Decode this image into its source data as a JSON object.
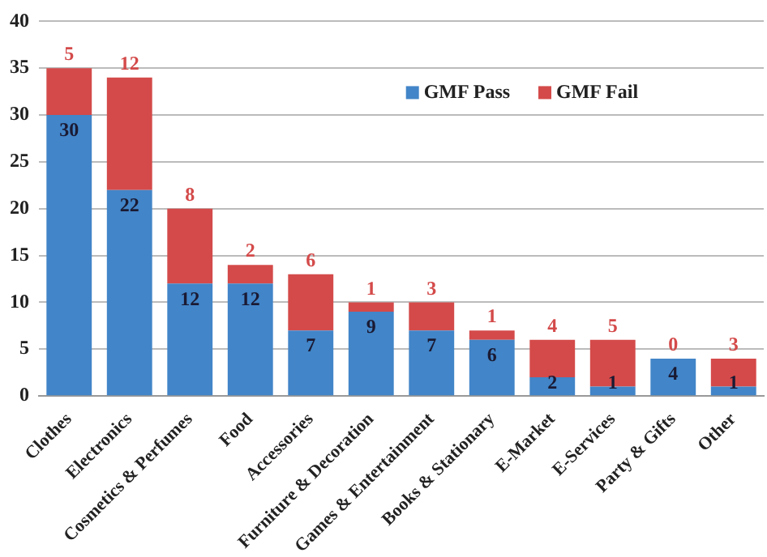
{
  "chart_data": {
    "type": "bar",
    "stacked": true,
    "categories": [
      "Clothes",
      "Electronics",
      "Cosmetics & Perfumes",
      "Food",
      "Accessories",
      "Furniture & Decoration",
      "Games & Entertainment",
      "Books & Stationary",
      "E-Market",
      "E-Services",
      "Party & Gifts",
      "Other"
    ],
    "series": [
      {
        "name": "GMF Pass",
        "color": "#4285c8",
        "values": [
          30,
          22,
          12,
          12,
          7,
          9,
          7,
          6,
          2,
          1,
          4,
          1
        ]
      },
      {
        "name": "GMF Fail",
        "color": "#d44a4a",
        "values": [
          5,
          12,
          8,
          2,
          6,
          1,
          3,
          1,
          4,
          5,
          0,
          3
        ]
      }
    ],
    "ylim": [
      0,
      40
    ],
    "yticks": [
      0,
      5,
      10,
      15,
      20,
      25,
      30,
      35,
      40
    ],
    "grid": "y",
    "legend": "top right",
    "data_labels": true
  }
}
